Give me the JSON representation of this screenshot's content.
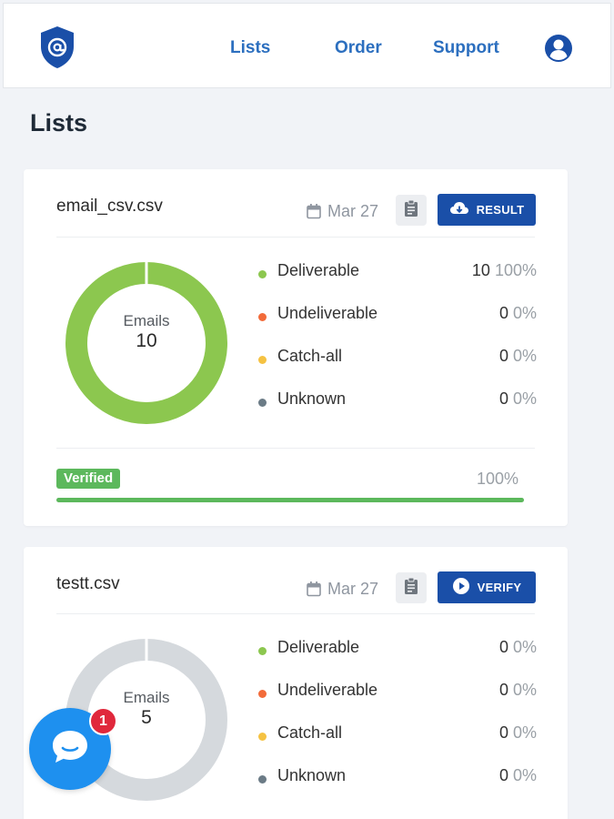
{
  "nav": {
    "logo_icon": "shield-at-icon",
    "links": [
      "Lists",
      "Order",
      "Support"
    ],
    "user_icon": "user-circle-icon"
  },
  "page": {
    "title": "Lists"
  },
  "colors": {
    "brand": "#1a4fa8",
    "deliverable": "#8cc74f",
    "undeliverable": "#f26b3a",
    "catch_all": "#f5c242",
    "unknown": "#6b7b86",
    "verified": "#5cb85c",
    "empty_donut": "#d5d9dd",
    "chat": "#1e90ef"
  },
  "lists": [
    {
      "filename": "email_csv.csv",
      "date": "Mar 27",
      "date_icon": "calendar-icon",
      "clipboard_icon": "clipboard-icon",
      "action_label": "RESULT",
      "action_icon": "cloud-download-icon",
      "donut_title": "Emails",
      "email_count": "10",
      "stats": [
        {
          "label": "Deliverable",
          "count": "10",
          "pct": "100%"
        },
        {
          "label": "Undeliverable",
          "count": "0",
          "pct": "0%"
        },
        {
          "label": "Catch-all",
          "count": "0",
          "pct": "0%"
        },
        {
          "label": "Unknown",
          "count": "0",
          "pct": "0%"
        }
      ],
      "status_label": "Verified",
      "progress_text": "100%",
      "progress": 1.0
    },
    {
      "filename": "testt.csv",
      "date": "Mar 27",
      "date_icon": "calendar-icon",
      "clipboard_icon": "clipboard-icon",
      "action_label": "VERIFY",
      "action_icon": "play-circle-icon",
      "donut_title": "Emails",
      "email_count": "5",
      "stats": [
        {
          "label": "Deliverable",
          "count": "0",
          "pct": "0%"
        },
        {
          "label": "Undeliverable",
          "count": "0",
          "pct": "0%"
        },
        {
          "label": "Catch-all",
          "count": "0",
          "pct": "0%"
        },
        {
          "label": "Unknown",
          "count": "0",
          "pct": "0%"
        }
      ]
    }
  ],
  "chat": {
    "icon": "chat-bubble-icon",
    "badge": "1"
  }
}
